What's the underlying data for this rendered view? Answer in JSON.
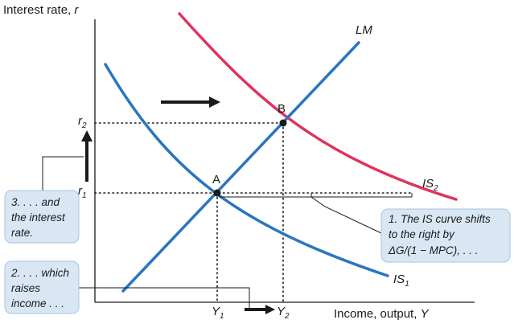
{
  "axes": {
    "y_label": "Interest rate, ",
    "y_var": "r",
    "x_label": "Income, output, ",
    "x_var": "Y"
  },
  "curves": {
    "lm": "LM",
    "is1_main": "IS",
    "is1_sub": "1",
    "is2_main": "IS",
    "is2_sub": "2"
  },
  "points": {
    "a": "A",
    "b": "B"
  },
  "ticks": {
    "r_var": "r",
    "r1_sub": "1",
    "r2_sub": "2",
    "y_var": "Y",
    "y1_sub": "1",
    "y2_sub": "2"
  },
  "callouts": {
    "box1": {
      "line1": "1. The IS curve shifts",
      "line2": "to the right by",
      "line3": "ΔG/(1 − MPC), . . ."
    },
    "box2": {
      "line1": "2. . . . which",
      "line2": "raises",
      "line3": "income . . ."
    },
    "box3": {
      "line1": "3. . . . and",
      "line2": "the interest",
      "line3": "rate."
    }
  },
  "colors": {
    "blue": "#2a75c1",
    "red": "#e0335b",
    "box_fill": "#d9e7f5",
    "box_stroke": "#a9c3de"
  }
}
